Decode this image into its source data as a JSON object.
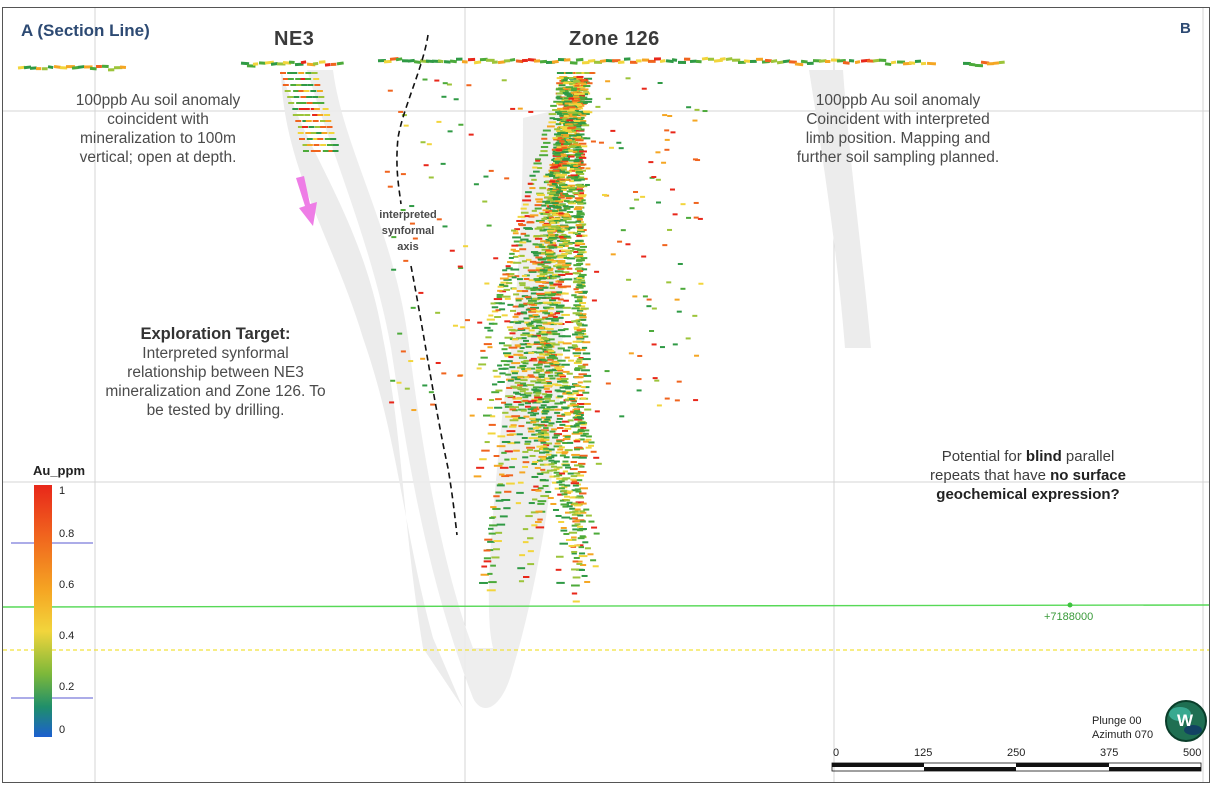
{
  "section": {
    "left_label": "A (Section Line)",
    "right_label": "B"
  },
  "zones": {
    "ne3": "NE3",
    "zone126": "Zone 126"
  },
  "annotations": {
    "ne3_anomaly": [
      "100ppb Au soil anomaly",
      "coincident with",
      "mineralization to 100m",
      "vertical; open at depth."
    ],
    "right_anomaly": [
      "100ppb Au soil anomaly",
      "Coincident with interpreted",
      "limb position. Mapping and",
      "further soil sampling planned."
    ],
    "synformal_axis": [
      "interpreted",
      "synformal",
      "axis"
    ],
    "exploration_target_title": "Exploration Target:",
    "exploration_target_body": [
      "Interpreted synformal",
      "relationship between NE3",
      "mineralization and Zone 126. To",
      "be tested by drilling."
    ],
    "blind_repeats": {
      "line1_pre": "Potential for ",
      "line1_bold": "blind",
      "line1_post": " parallel",
      "line2_pre": "repeats that have ",
      "line2_bold": "no surface",
      "line3_bold": "geochemical expression?"
    }
  },
  "legend": {
    "title": "Au_ppm",
    "ticks": [
      "1",
      "0.8",
      "0.6",
      "0.4",
      "0.2",
      "0"
    ],
    "colors": [
      "#e8271a",
      "#f0641e",
      "#f5a623",
      "#f2d53c",
      "#7cb83a",
      "#1f8f6a",
      "#1c5fd0"
    ]
  },
  "grid_coordinate": "+7188000",
  "scale_bar": {
    "ticks": [
      "0",
      "125",
      "250",
      "375",
      "500"
    ]
  },
  "view": {
    "plunge": "Plunge 00",
    "azimuth": "Azimuth 070"
  },
  "compass": {
    "letter": "W"
  },
  "colors": {
    "corner_label": "#2d4a73",
    "arrow": "#ee7de6",
    "grid_green": "#57d957",
    "grid_yellow": "#f2e23a",
    "ghost_limb": "#ececec"
  }
}
